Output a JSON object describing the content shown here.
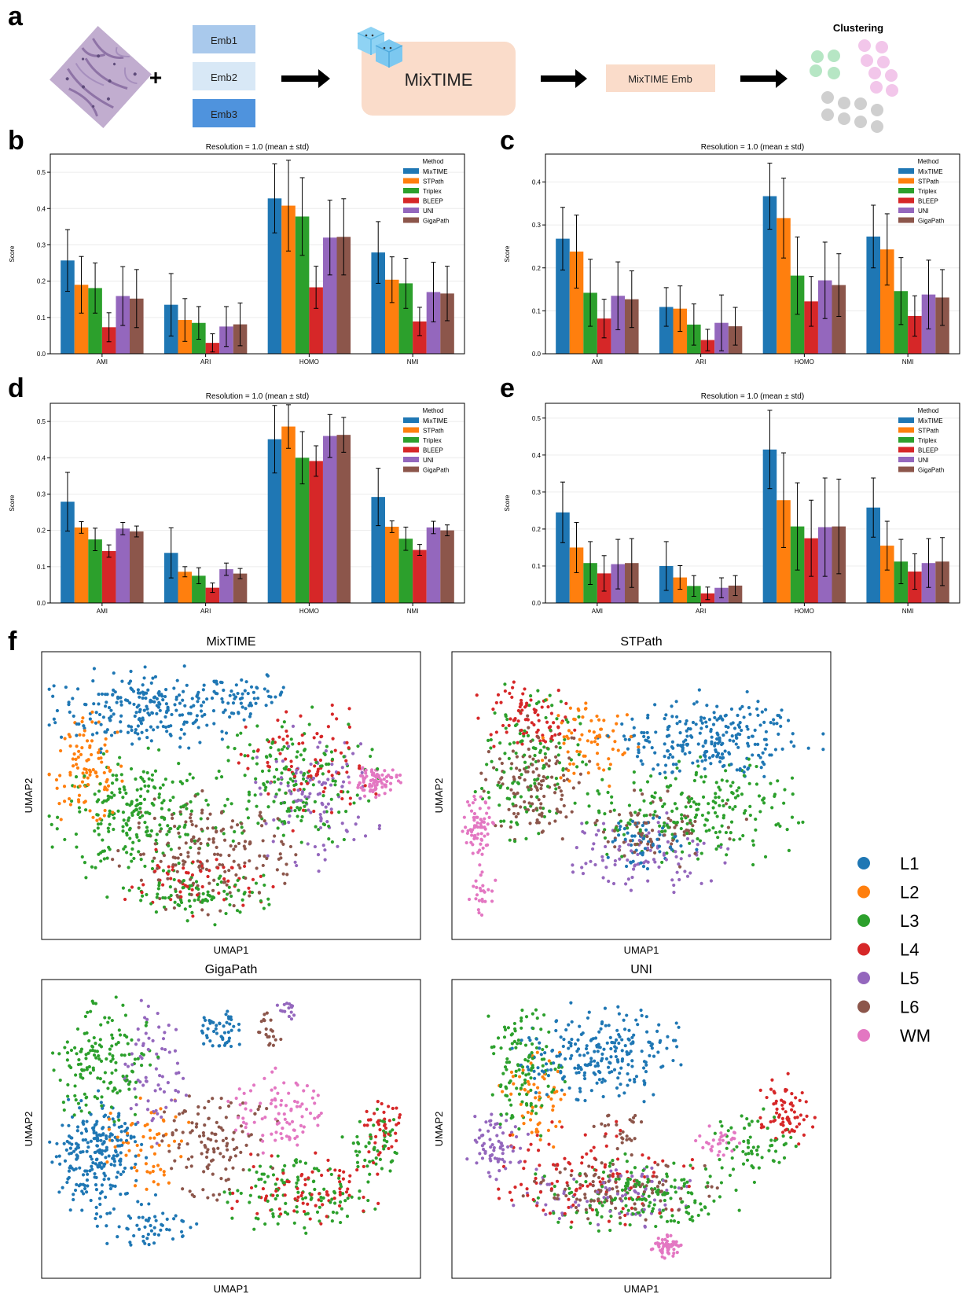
{
  "panel_letters": {
    "a": "a",
    "b": "b",
    "c": "c",
    "d": "d",
    "e": "e",
    "f": "f"
  },
  "schematic": {
    "plus": "+",
    "emb_labels": [
      "Emb1",
      "Emb2",
      "Emb3"
    ],
    "model_label": "MixTIME",
    "output_label": "MixTIME Emb",
    "clustering_label": "Clustering",
    "colors": {
      "emb1": "#a9c9ec",
      "emb2": "#d8e8f6",
      "emb3": "#4f93dd",
      "model_box": "#fadcca",
      "output_box": "#fadcca",
      "tissue": "#b9a3c8",
      "cluster_green": "#b6e6c4",
      "cluster_pink": "#f2c6ea",
      "cluster_gray": "#cfcfcf",
      "cube": "#8fd3f4"
    }
  },
  "method_colors": {
    "MixTIME": "#1f77b4",
    "STPath": "#ff7f0e",
    "Triplex": "#2ca02c",
    "BLEEP": "#d62728",
    "UNI": "#9467bd",
    "GigaPath": "#8c564b"
  },
  "chart_data": [
    {
      "panel": "b",
      "type": "bar",
      "title": "Resolution = 1.0 (mean ± std)",
      "xlabel": "",
      "ylabel": "Score",
      "categories": [
        "AMI",
        "ARI",
        "HOMO",
        "NMI"
      ],
      "ylim": [
        0,
        0.55
      ],
      "yticks": [
        0.0,
        0.1,
        0.2,
        0.3,
        0.4,
        0.5
      ],
      "legend_title": "Method",
      "legend_position": "top-right",
      "grid": "y",
      "series": [
        {
          "name": "MixTIME",
          "values": [
            0.257,
            0.135,
            0.428,
            0.279
          ],
          "errors": [
            0.085,
            0.086,
            0.095,
            0.085
          ]
        },
        {
          "name": "STPath",
          "values": [
            0.19,
            0.093,
            0.408,
            0.204
          ],
          "errors": [
            0.078,
            0.059,
            0.125,
            0.063
          ]
        },
        {
          "name": "Triplex",
          "values": [
            0.181,
            0.085,
            0.378,
            0.194
          ],
          "errors": [
            0.069,
            0.045,
            0.107,
            0.069
          ]
        },
        {
          "name": "BLEEP",
          "values": [
            0.073,
            0.03,
            0.183,
            0.089
          ],
          "errors": [
            0.04,
            0.025,
            0.058,
            0.039
          ]
        },
        {
          "name": "UNI",
          "values": [
            0.159,
            0.075,
            0.32,
            0.17
          ],
          "errors": [
            0.081,
            0.055,
            0.103,
            0.082
          ]
        },
        {
          "name": "GigaPath",
          "values": [
            0.152,
            0.081,
            0.322,
            0.166
          ],
          "errors": [
            0.08,
            0.059,
            0.105,
            0.075
          ]
        }
      ]
    },
    {
      "panel": "c",
      "type": "bar",
      "title": "Resolution = 1.0 (mean ± std)",
      "xlabel": "",
      "ylabel": "Score",
      "categories": [
        "AMI",
        "ARI",
        "HOMO",
        "NMI"
      ],
      "ylim": [
        0,
        0.465
      ],
      "yticks": [
        0.0,
        0.1,
        0.2,
        0.3,
        0.4
      ],
      "legend_title": "Method",
      "legend_position": "top-right",
      "grid": "y",
      "series": [
        {
          "name": "MixTIME",
          "values": [
            0.268,
            0.109,
            0.367,
            0.273
          ],
          "errors": [
            0.073,
            0.045,
            0.077,
            0.073
          ]
        },
        {
          "name": "STPath",
          "values": [
            0.238,
            0.105,
            0.316,
            0.243
          ],
          "errors": [
            0.085,
            0.053,
            0.093,
            0.083
          ]
        },
        {
          "name": "Triplex",
          "values": [
            0.142,
            0.068,
            0.182,
            0.146
          ],
          "errors": [
            0.078,
            0.048,
            0.09,
            0.078
          ]
        },
        {
          "name": "BLEEP",
          "values": [
            0.082,
            0.032,
            0.122,
            0.088
          ],
          "errors": [
            0.045,
            0.025,
            0.058,
            0.047
          ]
        },
        {
          "name": "UNI",
          "values": [
            0.135,
            0.072,
            0.171,
            0.138
          ],
          "errors": [
            0.079,
            0.065,
            0.089,
            0.08
          ]
        },
        {
          "name": "GigaPath",
          "values": [
            0.127,
            0.064,
            0.16,
            0.131
          ],
          "errors": [
            0.066,
            0.044,
            0.073,
            0.065
          ]
        }
      ]
    },
    {
      "panel": "d",
      "type": "bar",
      "title": "Resolution = 1.0 (mean ± std)",
      "xlabel": "",
      "ylabel": "Score",
      "categories": [
        "AMI",
        "ARI",
        "HOMO",
        "NMI"
      ],
      "ylim": [
        0,
        0.55
      ],
      "yticks": [
        0.0,
        0.1,
        0.2,
        0.3,
        0.4,
        0.5
      ],
      "legend_title": "Method",
      "legend_position": "top-right",
      "grid": "y",
      "series": [
        {
          "name": "MixTIME",
          "values": [
            0.279,
            0.138,
            0.451,
            0.292
          ],
          "errors": [
            0.081,
            0.069,
            0.093,
            0.079
          ]
        },
        {
          "name": "STPath",
          "values": [
            0.208,
            0.086,
            0.486,
            0.21
          ],
          "errors": [
            0.016,
            0.014,
            0.06,
            0.016
          ]
        },
        {
          "name": "Triplex",
          "values": [
            0.175,
            0.075,
            0.4,
            0.177
          ],
          "errors": [
            0.031,
            0.022,
            0.072,
            0.032
          ]
        },
        {
          "name": "BLEEP",
          "values": [
            0.143,
            0.042,
            0.391,
            0.146
          ],
          "errors": [
            0.017,
            0.013,
            0.042,
            0.015
          ]
        },
        {
          "name": "UNI",
          "values": [
            0.205,
            0.093,
            0.46,
            0.208
          ],
          "errors": [
            0.017,
            0.017,
            0.059,
            0.017
          ]
        },
        {
          "name": "GigaPath",
          "values": [
            0.197,
            0.081,
            0.463,
            0.2
          ],
          "errors": [
            0.015,
            0.014,
            0.048,
            0.015
          ]
        }
      ]
    },
    {
      "panel": "e",
      "type": "bar",
      "title": "Resolution = 1.0 (mean ± std)",
      "xlabel": "",
      "ylabel": "Score",
      "categories": [
        "AMI",
        "ARI",
        "HOMO",
        "NMI"
      ],
      "ylim": [
        0,
        0.54
      ],
      "yticks": [
        0.0,
        0.1,
        0.2,
        0.3,
        0.4,
        0.5
      ],
      "legend_title": "Method",
      "legend_position": "top-right",
      "grid": "y",
      "series": [
        {
          "name": "MixTIME",
          "values": [
            0.245,
            0.1,
            0.415,
            0.258
          ],
          "errors": [
            0.082,
            0.066,
            0.106,
            0.08
          ]
        },
        {
          "name": "STPath",
          "values": [
            0.15,
            0.069,
            0.278,
            0.155
          ],
          "errors": [
            0.068,
            0.032,
            0.128,
            0.066
          ]
        },
        {
          "name": "Triplex",
          "values": [
            0.108,
            0.046,
            0.207,
            0.112
          ],
          "errors": [
            0.058,
            0.028,
            0.118,
            0.06
          ]
        },
        {
          "name": "BLEEP",
          "values": [
            0.08,
            0.026,
            0.175,
            0.085
          ],
          "errors": [
            0.048,
            0.017,
            0.103,
            0.048
          ]
        },
        {
          "name": "UNI",
          "values": [
            0.105,
            0.041,
            0.205,
            0.108
          ],
          "errors": [
            0.067,
            0.027,
            0.133,
            0.066
          ]
        },
        {
          "name": "GigaPath",
          "values": [
            0.108,
            0.047,
            0.207,
            0.112
          ],
          "errors": [
            0.066,
            0.027,
            0.128,
            0.065
          ]
        }
      ]
    },
    {
      "panel": "f",
      "type": "scatter",
      "subtype": "umap",
      "xlabel": "UMAP1",
      "ylabel": "UMAP2",
      "legend_position": "right",
      "grid": "off",
      "classes": [
        {
          "name": "L1",
          "color": "#1f77b4"
        },
        {
          "name": "L2",
          "color": "#ff7f0e"
        },
        {
          "name": "L3",
          "color": "#2ca02c"
        },
        {
          "name": "L4",
          "color": "#d62728"
        },
        {
          "name": "L5",
          "color": "#9467bd"
        },
        {
          "name": "L6",
          "color": "#8c564b"
        },
        {
          "name": "WM",
          "color": "#e377c2"
        }
      ],
      "subplots": [
        {
          "title": "MixTIME",
          "regions": [
            {
              "cls": "L1",
              "cx": 0.28,
              "cy": 0.8,
              "rx": 0.24,
              "ry": 0.13,
              "n": 240
            },
            {
              "cls": "L1",
              "cx": 0.55,
              "cy": 0.85,
              "rx": 0.1,
              "ry": 0.06,
              "n": 50
            },
            {
              "cls": "L2",
              "cx": 0.12,
              "cy": 0.58,
              "rx": 0.1,
              "ry": 0.18,
              "n": 100
            },
            {
              "cls": "L3",
              "cx": 0.25,
              "cy": 0.42,
              "rx": 0.2,
              "ry": 0.2,
              "n": 240
            },
            {
              "cls": "L3",
              "cx": 0.65,
              "cy": 0.55,
              "rx": 0.2,
              "ry": 0.22,
              "n": 170
            },
            {
              "cls": "L4",
              "cx": 0.7,
              "cy": 0.6,
              "rx": 0.16,
              "ry": 0.2,
              "n": 90
            },
            {
              "cls": "L5",
              "cx": 0.72,
              "cy": 0.5,
              "rx": 0.16,
              "ry": 0.22,
              "n": 110
            },
            {
              "cls": "L6",
              "cx": 0.45,
              "cy": 0.3,
              "rx": 0.22,
              "ry": 0.18,
              "n": 180
            },
            {
              "cls": "L4",
              "cx": 0.4,
              "cy": 0.2,
              "rx": 0.18,
              "ry": 0.1,
              "n": 60
            },
            {
              "cls": "L3",
              "cx": 0.42,
              "cy": 0.15,
              "rx": 0.2,
              "ry": 0.08,
              "n": 90
            },
            {
              "cls": "WM",
              "cx": 0.88,
              "cy": 0.55,
              "rx": 0.06,
              "ry": 0.05,
              "n": 80
            }
          ]
        },
        {
          "title": "STPath",
          "regions": [
            {
              "cls": "L1",
              "cx": 0.68,
              "cy": 0.7,
              "rx": 0.25,
              "ry": 0.14,
              "n": 260
            },
            {
              "cls": "L1",
              "cx": 0.5,
              "cy": 0.33,
              "rx": 0.12,
              "ry": 0.08,
              "n": 60
            },
            {
              "cls": "L3",
              "cx": 0.65,
              "cy": 0.45,
              "rx": 0.27,
              "ry": 0.18,
              "n": 220
            },
            {
              "cls": "L3",
              "cx": 0.2,
              "cy": 0.6,
              "rx": 0.14,
              "ry": 0.25,
              "n": 130
            },
            {
              "cls": "L2",
              "cx": 0.35,
              "cy": 0.7,
              "rx": 0.12,
              "ry": 0.15,
              "n": 70
            },
            {
              "cls": "L4",
              "cx": 0.2,
              "cy": 0.78,
              "rx": 0.12,
              "ry": 0.12,
              "n": 80
            },
            {
              "cls": "L6",
              "cx": 0.22,
              "cy": 0.55,
              "rx": 0.12,
              "ry": 0.2,
              "n": 130
            },
            {
              "cls": "L5",
              "cx": 0.5,
              "cy": 0.3,
              "rx": 0.2,
              "ry": 0.12,
              "n": 90
            },
            {
              "cls": "L6",
              "cx": 0.55,
              "cy": 0.38,
              "rx": 0.2,
              "ry": 0.12,
              "n": 80
            },
            {
              "cls": "WM",
              "cx": 0.07,
              "cy": 0.4,
              "rx": 0.04,
              "ry": 0.1,
              "n": 70
            },
            {
              "cls": "WM",
              "cx": 0.08,
              "cy": 0.18,
              "rx": 0.03,
              "ry": 0.08,
              "n": 25
            }
          ]
        },
        {
          "title": "GigaPath",
          "regions": [
            {
              "cls": "L1",
              "cx": 0.14,
              "cy": 0.42,
              "rx": 0.11,
              "ry": 0.18,
              "n": 240
            },
            {
              "cls": "L1",
              "cx": 0.47,
              "cy": 0.83,
              "rx": 0.06,
              "ry": 0.07,
              "n": 50
            },
            {
              "cls": "L1",
              "cx": 0.28,
              "cy": 0.18,
              "rx": 0.12,
              "ry": 0.08,
              "n": 60
            },
            {
              "cls": "L3",
              "cx": 0.16,
              "cy": 0.72,
              "rx": 0.13,
              "ry": 0.18,
              "n": 150
            },
            {
              "cls": "L3",
              "cx": 0.68,
              "cy": 0.28,
              "rx": 0.2,
              "ry": 0.12,
              "n": 120
            },
            {
              "cls": "L3",
              "cx": 0.88,
              "cy": 0.45,
              "rx": 0.06,
              "ry": 0.1,
              "n": 50
            },
            {
              "cls": "L2",
              "cx": 0.28,
              "cy": 0.45,
              "rx": 0.1,
              "ry": 0.15,
              "n": 60
            },
            {
              "cls": "L5",
              "cx": 0.3,
              "cy": 0.7,
              "rx": 0.08,
              "ry": 0.2,
              "n": 70
            },
            {
              "cls": "L6",
              "cx": 0.45,
              "cy": 0.45,
              "rx": 0.15,
              "ry": 0.17,
              "n": 120
            },
            {
              "cls": "L4",
              "cx": 0.7,
              "cy": 0.3,
              "rx": 0.2,
              "ry": 0.12,
              "n": 80
            },
            {
              "cls": "L4",
              "cx": 0.9,
              "cy": 0.5,
              "rx": 0.05,
              "ry": 0.1,
              "n": 40
            },
            {
              "cls": "WM",
              "cx": 0.63,
              "cy": 0.56,
              "rx": 0.12,
              "ry": 0.12,
              "n": 90
            },
            {
              "cls": "L6",
              "cx": 0.6,
              "cy": 0.82,
              "rx": 0.03,
              "ry": 0.08,
              "n": 20
            },
            {
              "cls": "L5",
              "cx": 0.65,
              "cy": 0.9,
              "rx": 0.03,
              "ry": 0.04,
              "n": 15
            }
          ]
        },
        {
          "title": "UNI",
          "regions": [
            {
              "cls": "L1",
              "cx": 0.4,
              "cy": 0.75,
              "rx": 0.2,
              "ry": 0.15,
              "n": 240
            },
            {
              "cls": "L3",
              "cx": 0.18,
              "cy": 0.7,
              "rx": 0.1,
              "ry": 0.2,
              "n": 120
            },
            {
              "cls": "L3",
              "cx": 0.5,
              "cy": 0.28,
              "rx": 0.25,
              "ry": 0.12,
              "n": 170
            },
            {
              "cls": "L2",
              "cx": 0.22,
              "cy": 0.62,
              "rx": 0.08,
              "ry": 0.18,
              "n": 60
            },
            {
              "cls": "L4",
              "cx": 0.35,
              "cy": 0.35,
              "rx": 0.25,
              "ry": 0.15,
              "n": 110
            },
            {
              "cls": "L6",
              "cx": 0.45,
              "cy": 0.3,
              "rx": 0.25,
              "ry": 0.1,
              "n": 110
            },
            {
              "cls": "L5",
              "cx": 0.12,
              "cy": 0.45,
              "rx": 0.07,
              "ry": 0.1,
              "n": 70
            },
            {
              "cls": "L5",
              "cx": 0.4,
              "cy": 0.28,
              "rx": 0.22,
              "ry": 0.1,
              "n": 80
            },
            {
              "cls": "L4",
              "cx": 0.88,
              "cy": 0.55,
              "rx": 0.07,
              "ry": 0.12,
              "n": 70
            },
            {
              "cls": "L3",
              "cx": 0.8,
              "cy": 0.45,
              "rx": 0.1,
              "ry": 0.1,
              "n": 60
            },
            {
              "cls": "WM",
              "cx": 0.57,
              "cy": 0.1,
              "rx": 0.04,
              "ry": 0.04,
              "n": 50
            },
            {
              "cls": "WM",
              "cx": 0.7,
              "cy": 0.45,
              "rx": 0.06,
              "ry": 0.06,
              "n": 30
            },
            {
              "cls": "L6",
              "cx": 0.45,
              "cy": 0.5,
              "rx": 0.06,
              "ry": 0.06,
              "n": 25
            }
          ]
        }
      ]
    }
  ]
}
